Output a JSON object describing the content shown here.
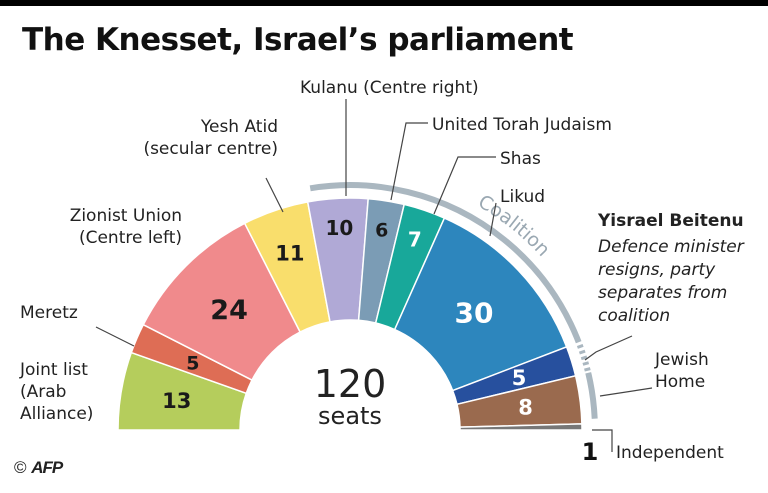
{
  "title": "The Knesset, Israel’s parliament",
  "credit": {
    "symbol": "©",
    "agency": "AFP"
  },
  "chart_data": {
    "type": "pie",
    "total": {
      "value": "120",
      "unit": "seats"
    },
    "coalition_label": "Coalition",
    "annotation": {
      "title": "Yisrael Beitenu",
      "lines": [
        "Defence minister",
        "resigns, party",
        "separates from",
        "coalition"
      ]
    },
    "series": [
      {
        "name": "Joint list",
        "label_lines": [
          "Joint list",
          "(Arab",
          "Alliance)"
        ],
        "value": 13,
        "color": "#b5cd5c"
      },
      {
        "name": "Meretz",
        "label_lines": [
          "Meretz"
        ],
        "value": 5,
        "color": "#de6d55"
      },
      {
        "name": "Zionist Union",
        "label_lines": [
          "Zionist Union",
          "(Centre left)"
        ],
        "value": 24,
        "color": "#f08a8c"
      },
      {
        "name": "Yesh Atid",
        "label_lines": [
          "Yesh Atid",
          "(secular centre)"
        ],
        "value": 11,
        "color": "#f9de6c"
      },
      {
        "name": "Kulanu",
        "label_lines": [
          "Kulanu (Centre right)"
        ],
        "value": 10,
        "color": "#b0a9d6"
      },
      {
        "name": "United Torah Judaism",
        "label_lines": [
          "United Torah Judaism"
        ],
        "value": 6,
        "color": "#7b9cb5"
      },
      {
        "name": "Shas",
        "label_lines": [
          "Shas"
        ],
        "value": 7,
        "color": "#18a89a"
      },
      {
        "name": "Likud",
        "label_lines": [
          "Likud"
        ],
        "value": 30,
        "color": "#2d86bd"
      },
      {
        "name": "Yisrael Beitenu",
        "label_lines": [],
        "value": 5,
        "color": "#27509e"
      },
      {
        "name": "Jewish Home",
        "label_lines": [
          "Jewish",
          "Home"
        ],
        "value": 8,
        "color": "#9a6a4e"
      },
      {
        "name": "Independent",
        "label_lines": [
          "Independent"
        ],
        "value": 1,
        "color": "#777777"
      }
    ]
  }
}
